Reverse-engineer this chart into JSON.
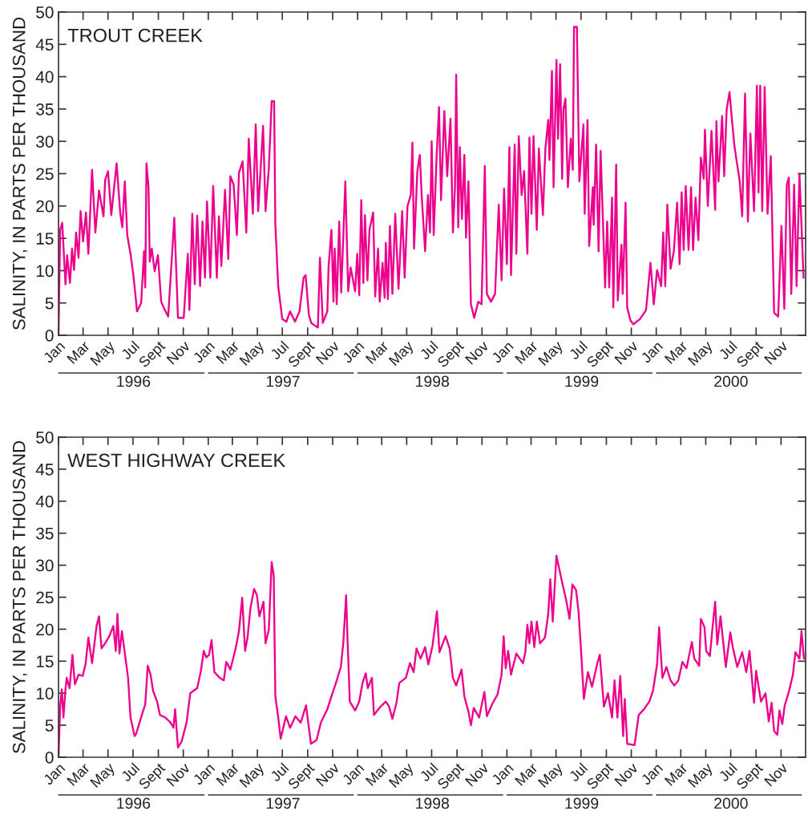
{
  "chart_data": [
    {
      "type": "line",
      "title": "TROUT CREEK",
      "ylabel": "SALINITY, IN PARTS PER THOUSAND",
      "x": [
        "1996-01-01",
        "1996-01-05",
        "1996-01-10",
        "1996-01-18",
        "1996-01-22",
        "1996-01-29",
        "1996-02-03",
        "1996-02-08",
        "1996-02-13",
        "1996-02-19",
        "1996-02-24",
        "1996-03-01",
        "1996-03-08",
        "1996-03-14",
        "1996-03-23",
        "1996-03-31",
        "1996-04-09",
        "1996-04-20",
        "1996-04-24",
        "1996-05-01",
        "1996-05-09",
        "1996-05-22",
        "1996-05-31",
        "1996-06-05",
        "1996-06-11",
        "1996-06-17",
        "1996-06-25",
        "1996-07-02",
        "1996-07-11",
        "1996-07-21",
        "1996-07-28",
        "1996-07-31",
        "1996-08-03",
        "1996-08-08",
        "1996-08-11",
        "1996-08-16",
        "1996-08-23",
        "1996-08-31",
        "1996-09-08",
        "1996-09-14",
        "1996-09-25",
        "1996-10-01",
        "1996-10-10",
        "1996-10-19",
        "1996-11-02",
        "1996-11-12",
        "1996-11-16",
        "1996-11-23",
        "1996-11-29",
        "1996-12-05",
        "1996-12-12",
        "1996-12-18",
        "1996-12-24",
        "1996-12-29",
        "1997-01-06",
        "1997-01-13",
        "1997-01-22",
        "1997-01-27",
        "1997-02-02",
        "1997-02-11",
        "1997-02-19",
        "1997-02-24",
        "1997-03-04",
        "1997-03-12",
        "1997-03-17",
        "1997-03-26",
        "1997-04-04",
        "1997-04-10",
        "1997-04-20",
        "1997-04-27",
        "1997-05-03",
        "1997-05-15",
        "1997-05-21",
        "1997-05-29",
        "1997-06-05",
        "1997-06-11",
        "1997-06-14",
        "1997-06-21",
        "1997-07-01",
        "1997-07-11",
        "1997-07-20",
        "1997-08-01",
        "1997-08-12",
        "1997-08-22",
        "1997-08-27",
        "1997-09-04",
        "1997-09-10",
        "1997-09-26",
        "1997-10-01",
        "1997-10-08",
        "1997-10-19",
        "1997-10-22",
        "1997-10-29",
        "1997-11-03",
        "1997-11-06",
        "1997-11-11",
        "1997-11-17",
        "1997-11-22",
        "1997-12-02",
        "1997-12-09",
        "1997-12-15",
        "1997-12-26",
        "1997-12-31",
        "1998-01-05",
        "1998-01-10",
        "1998-01-15",
        "1998-01-19",
        "1998-01-25",
        "1998-01-30",
        "1998-02-08",
        "1998-02-13",
        "1998-02-20",
        "1998-02-24",
        "1998-03-03",
        "1998-03-08",
        "1998-03-11",
        "1998-03-16",
        "1998-03-21",
        "1998-03-27",
        "1998-04-03",
        "1998-04-11",
        "1998-04-20",
        "1998-04-26",
        "1998-05-03",
        "1998-05-11",
        "1998-05-15",
        "1998-05-19",
        "1998-05-27",
        "1998-06-02",
        "1998-06-07",
        "1998-06-15",
        "1998-06-22",
        "1998-06-27",
        "1998-07-01",
        "1998-07-06",
        "1998-07-13",
        "1998-07-19",
        "1998-07-24",
        "1998-08-01",
        "1998-08-08",
        "1998-08-16",
        "1998-08-22",
        "1998-08-27",
        "1998-08-30",
        "1998-09-04",
        "1998-09-08",
        "1998-09-13",
        "1998-09-19",
        "1998-09-23",
        "1998-09-29",
        "1998-10-05",
        "1998-10-13",
        "1998-10-23",
        "1998-10-31",
        "1998-11-08",
        "1998-11-13",
        "1998-11-23",
        "1998-12-03",
        "1998-12-12",
        "1998-12-19",
        "1998-12-25",
        "1999-01-01",
        "1999-01-07",
        "1999-01-11",
        "1999-01-20",
        "1999-01-24",
        "1999-01-30",
        "1999-02-06",
        "1999-02-12",
        "1999-02-20",
        "1999-02-25",
        "1999-03-02",
        "1999-03-07",
        "1999-03-15",
        "1999-03-20",
        "1999-03-30",
        "1999-04-05",
        "1999-04-12",
        "1999-04-15",
        "1999-04-21",
        "1999-04-25",
        "1999-05-02",
        "1999-05-06",
        "1999-05-11",
        "1999-05-16",
        "1999-05-19",
        "1999-05-24",
        "1999-05-30",
        "1999-06-06",
        "1999-06-11",
        "1999-06-14",
        "1999-06-21",
        "1999-06-24",
        "1999-06-27",
        "1999-07-07",
        "1999-07-10",
        "1999-07-17",
        "1999-07-21",
        "1999-07-30",
        "1999-08-01",
        "1999-08-07",
        "1999-08-13",
        "1999-08-18",
        "1999-08-29",
        "1999-09-03",
        "1999-09-08",
        "1999-09-15",
        "1999-09-18",
        "1999-09-25",
        "1999-09-29",
        "1999-10-08",
        "1999-10-11",
        "1999-10-18",
        "1999-10-22",
        "1999-10-30",
        "1999-11-06",
        "1999-11-22",
        "1999-12-07",
        "1999-12-18",
        "1999-12-26",
        "2000-01-03",
        "2000-01-13",
        "2000-01-18",
        "2000-01-23",
        "2000-01-28",
        "2000-02-05",
        "2000-02-13",
        "2000-02-21",
        "2000-02-27",
        "2000-03-03",
        "2000-03-08",
        "2000-03-13",
        "2000-03-20",
        "2000-03-26",
        "2000-03-31",
        "2000-04-06",
        "2000-04-13",
        "2000-04-19",
        "2000-04-26",
        "2000-04-29",
        "2000-05-06",
        "2000-05-15",
        "2000-05-24",
        "2000-05-27",
        "2000-06-01",
        "2000-06-10",
        "2000-06-15",
        "2000-06-21",
        "2000-06-28",
        "2000-07-04",
        "2000-07-10",
        "2000-07-23",
        "2000-07-29",
        "2000-08-05",
        "2000-08-12",
        "2000-08-18",
        "2000-08-27",
        "2000-09-03",
        "2000-09-07",
        "2000-09-11",
        "2000-09-16",
        "2000-09-22",
        "2000-09-29",
        "2000-10-07",
        "2000-10-15",
        "2000-10-25",
        "2000-11-02",
        "2000-11-09",
        "2000-11-15",
        "2000-11-20",
        "2000-11-26",
        "2000-12-03",
        "2000-12-09",
        "2000-12-16",
        "2000-12-26"
      ],
      "series": [
        {
          "color": "#ec008c",
          "values": [
            0,
            16.3,
            17.4,
            7.9,
            12.4,
            8.1,
            13.4,
            10.1,
            15.9,
            12.0,
            19.2,
            14.5,
            19.0,
            12.6,
            25.6,
            15.9,
            22.4,
            18.4,
            24.0,
            25.4,
            18.6,
            26.6,
            18.8,
            16.7,
            23.8,
            15.5,
            12.6,
            9.3,
            3.7,
            5.0,
            13.0,
            7.4,
            26.6,
            22.9,
            11.4,
            13.4,
            9.9,
            12.4,
            5.2,
            4.3,
            2.9,
            8.9,
            18.2,
            2.7,
            2.7,
            12.6,
            3.9,
            18.8,
            7.9,
            18.5,
            7.6,
            17.6,
            8.9,
            20.7,
            8.9,
            23.1,
            8.9,
            18.4,
            10.7,
            22.5,
            11.8,
            24.6,
            23.3,
            15.5,
            25.1,
            26.9,
            15.9,
            30.4,
            18.8,
            32.6,
            19.2,
            32.4,
            19.2,
            25.8,
            36.2,
            36.2,
            17.1,
            7.6,
            2.5,
            2.1,
            3.7,
            2.1,
            3.7,
            8.9,
            9.3,
            3.1,
            1.9,
            1.2,
            12.0,
            1.9,
            3.7,
            10.5,
            16.3,
            5.2,
            13.4,
            4.8,
            17.6,
            6.6,
            23.8,
            6.8,
            10.5,
            6.8,
            12.6,
            6.2,
            20.9,
            8.1,
            18.6,
            8.5,
            16.3,
            19.0,
            6.0,
            13.4,
            5.2,
            11.2,
            5.8,
            14.3,
            5.6,
            16.9,
            6.4,
            18.8,
            7.2,
            19.2,
            8.9,
            20.0,
            21.7,
            29.8,
            13.4,
            25.4,
            27.9,
            21.3,
            13.0,
            21.7,
            15.9,
            30.0,
            15.5,
            27.5,
            35.3,
            20.9,
            34.7,
            24.6,
            33.5,
            15.9,
            22.9,
            40.3,
            16.7,
            29.1,
            18.0,
            27.9,
            15.1,
            23.8,
            4.8,
            2.7,
            5.2,
            4.8,
            26.2,
            6.4,
            5.2,
            6.4,
            20.2,
            8.5,
            22.7,
            11.0,
            29.1,
            9.3,
            29.5,
            12.6,
            30.8,
            21.7,
            25.4,
            12.6,
            30.6,
            18.8,
            30.8,
            16.3,
            28.9,
            18.6,
            28.9,
            33.3,
            27.1,
            40.9,
            22.9,
            42.6,
            30.4,
            41.9,
            24.2,
            34.9,
            36.6,
            22.9,
            30.4,
            25.6,
            47.7,
            47.7,
            35.7,
            23.8,
            32.6,
            18.8,
            33.3,
            13.8,
            22.9,
            17.1,
            29.5,
            13.0,
            28.5,
            7.4,
            17.6,
            7.4,
            21.3,
            4.3,
            26.4,
            5.4,
            14.0,
            6.4,
            20.5,
            4.3,
            2.3,
            1.7,
            2.5,
            3.9,
            11.2,
            4.8,
            10.1,
            7.6,
            15.9,
            7.6,
            20.2,
            10.3,
            13.0,
            20.5,
            11.0,
            22.1,
            13.2,
            23.1,
            13.2,
            22.9,
            13.2,
            21.3,
            14.7,
            27.5,
            24.2,
            31.8,
            20.0,
            31.6,
            19.4,
            33.1,
            23.8,
            33.9,
            24.6,
            34.9,
            37.6,
            33.3,
            29.3,
            23.8,
            18.4,
            37.4,
            17.6,
            31.2,
            19.2,
            38.6,
            22.1,
            38.6,
            19.2,
            38.4,
            18.8,
            27.7,
            3.5,
            2.9,
            16.9,
            4.1,
            23.3,
            24.4,
            6.4,
            23.3,
            7.6,
            25.0,
            8.9
          ]
        }
      ],
      "xlim": [
        "1996-01-01",
        "2000-12-31"
      ],
      "ylim": [
        0,
        50
      ],
      "yticks": [
        0,
        5,
        10,
        15,
        20,
        25,
        30,
        35,
        40,
        45,
        50
      ],
      "xticks": [
        {
          "value": "1996-01-01",
          "label": "Jan"
        },
        {
          "value": "1996-03-01",
          "label": "Mar"
        },
        {
          "value": "1996-05-01",
          "label": "May"
        },
        {
          "value": "1996-07-01",
          "label": "Jul"
        },
        {
          "value": "1996-09-01",
          "label": "Sept"
        },
        {
          "value": "1996-11-01",
          "label": "Nov"
        },
        {
          "value": "1997-01-01",
          "label": "Jan"
        },
        {
          "value": "1997-03-01",
          "label": "Mar"
        },
        {
          "value": "1997-05-01",
          "label": "May"
        },
        {
          "value": "1997-07-01",
          "label": "Jul"
        },
        {
          "value": "1997-09-01",
          "label": "Sept"
        },
        {
          "value": "1997-11-01",
          "label": "Nov"
        },
        {
          "value": "1998-01-01",
          "label": "Jan"
        },
        {
          "value": "1998-03-01",
          "label": "Mar"
        },
        {
          "value": "1998-05-01",
          "label": "May"
        },
        {
          "value": "1998-07-01",
          "label": "Jul"
        },
        {
          "value": "1998-09-01",
          "label": "Sept"
        },
        {
          "value": "1998-11-01",
          "label": "Nov"
        },
        {
          "value": "1999-01-01",
          "label": "Jan"
        },
        {
          "value": "1999-03-01",
          "label": "Mar"
        },
        {
          "value": "1999-05-01",
          "label": "May"
        },
        {
          "value": "1999-07-01",
          "label": "Jul"
        },
        {
          "value": "1999-09-01",
          "label": "Sept"
        },
        {
          "value": "1999-11-01",
          "label": "Nov"
        },
        {
          "value": "2000-01-01",
          "label": "Jan"
        },
        {
          "value": "2000-03-01",
          "label": "Mar"
        },
        {
          "value": "2000-05-01",
          "label": "May"
        },
        {
          "value": "2000-07-01",
          "label": "Jul"
        },
        {
          "value": "2000-09-01",
          "label": "Sept"
        },
        {
          "value": "2000-11-01",
          "label": "Nov"
        }
      ],
      "annotations": [
        "1996",
        "1997",
        "1998",
        "1999",
        "2000"
      ]
    },
    {
      "type": "line",
      "title": "WEST HIGHWAY CREEK",
      "ylabel": "SALINITY, IN PARTS PER THOUSAND",
      "x": [
        "1996-01-01",
        "1996-01-05",
        "1996-01-09",
        "1996-01-13",
        "1996-01-18",
        "1996-01-21",
        "1996-01-28",
        "1996-02-04",
        "1996-02-10",
        "1996-02-19",
        "1996-02-29",
        "1996-03-07",
        "1996-03-14",
        "1996-03-23",
        "1996-04-03",
        "1996-04-09",
        "1996-04-15",
        "1996-04-24",
        "1996-05-04",
        "1996-05-14",
        "1996-05-20",
        "1996-05-24",
        "1996-05-29",
        "1996-06-04",
        "1996-06-12",
        "1996-06-19",
        "1996-06-25",
        "1996-07-05",
        "1996-07-09",
        "1996-07-15",
        "1996-07-31",
        "1996-08-06",
        "1996-08-13",
        "1996-08-19",
        "1996-08-29",
        "1996-09-05",
        "1996-09-18",
        "1996-10-01",
        "1996-10-08",
        "1996-10-12",
        "1996-10-19",
        "1996-10-28",
        "1996-11-09",
        "1996-11-18",
        "1996-12-05",
        "1996-12-14",
        "1996-12-21",
        "1996-12-27",
        "1997-01-03",
        "1997-01-09",
        "1997-01-16",
        "1997-01-29",
        "1997-02-08",
        "1997-02-14",
        "1997-02-24",
        "1997-03-09",
        "1997-03-17",
        "1997-03-25",
        "1997-04-01",
        "1997-04-07",
        "1997-04-14",
        "1997-04-23",
        "1997-04-30",
        "1997-05-06",
        "1997-05-16",
        "1997-05-21",
        "1997-05-29",
        "1997-06-05",
        "1997-06-10",
        "1997-06-14",
        "1997-06-21",
        "1997-06-27",
        "1997-07-10",
        "1997-07-20",
        "1997-08-02",
        "1997-08-15",
        "1997-08-28",
        "1997-09-04",
        "1997-09-09",
        "1997-09-23",
        "1997-10-03",
        "1997-10-19",
        "1997-10-29",
        "1997-11-08",
        "1997-11-21",
        "1997-11-27",
        "1997-12-04",
        "1997-12-07",
        "1997-12-13",
        "1997-12-26",
        "1998-01-05",
        "1998-01-13",
        "1998-01-21",
        "1998-01-26",
        "1998-02-05",
        "1998-02-10",
        "1998-02-26",
        "1998-03-11",
        "1998-03-19",
        "1998-03-27",
        "1998-04-06",
        "1998-04-13",
        "1998-04-29",
        "1998-05-09",
        "1998-05-18",
        "1998-05-25",
        "1998-06-04",
        "1998-06-15",
        "1998-06-23",
        "1998-07-03",
        "1998-07-14",
        "1998-07-20",
        "1998-08-04",
        "1998-08-14",
        "1998-08-22",
        "1998-08-30",
        "1998-09-12",
        "1998-09-19",
        "1998-09-29",
        "1998-10-05",
        "1998-10-12",
        "1998-10-25",
        "1998-11-07",
        "1998-11-13",
        "1998-11-26",
        "1998-12-09",
        "1998-12-19",
        "1998-12-24",
        "1998-12-29",
        "1999-01-04",
        "1999-01-11",
        "1999-01-24",
        "1999-02-09",
        "1999-02-15",
        "1999-02-20",
        "1999-02-25",
        "1999-03-02",
        "1999-03-09",
        "1999-03-15",
        "1999-03-23",
        "1999-04-04",
        "1999-04-12",
        "1999-04-17",
        "1999-04-23",
        "1999-05-02",
        "1999-05-17",
        "1999-05-26",
        "1999-06-03",
        "1999-06-10",
        "1999-06-19",
        "1999-06-25",
        "1999-07-02",
        "1999-07-08",
        "1999-07-18",
        "1999-07-28",
        "1999-08-10",
        "1999-08-16",
        "1999-08-26",
        "1999-09-05",
        "1999-09-15",
        "1999-09-21",
        "1999-09-28",
        "1999-10-05",
        "1999-10-12",
        "1999-10-16",
        "1999-10-22",
        "1999-11-09",
        "1999-11-19",
        "1999-12-02",
        "1999-12-15",
        "1999-12-24",
        "2000-01-03",
        "2000-01-08",
        "2000-01-16",
        "2000-01-26",
        "2000-02-05",
        "2000-02-14",
        "2000-02-24",
        "2000-03-05",
        "2000-03-15",
        "2000-03-28",
        "2000-04-03",
        "2000-04-15",
        "2000-04-19",
        "2000-04-28",
        "2000-05-02",
        "2000-05-11",
        "2000-05-17",
        "2000-05-24",
        "2000-05-29",
        "2000-06-06",
        "2000-06-19",
        "2000-06-30",
        "2000-07-06",
        "2000-07-17",
        "2000-07-29",
        "2000-08-08",
        "2000-08-16",
        "2000-08-27",
        "2000-09-01",
        "2000-09-13",
        "2000-09-24",
        "2000-10-02",
        "2000-10-09",
        "2000-10-15",
        "2000-10-23",
        "2000-10-28",
        "2000-11-04",
        "2000-11-10",
        "2000-11-20",
        "2000-11-30",
        "2000-12-06",
        "2000-12-16",
        "2000-12-21",
        "2000-12-27"
      ],
      "series": [
        {
          "color": "#ec008c",
          "values": [
            0,
            7.9,
            10.6,
            6.2,
            10.6,
            12.4,
            10.8,
            16.0,
            11.4,
            12.9,
            12.7,
            14.5,
            18.7,
            14.7,
            20.5,
            22.0,
            17.0,
            17.8,
            18.9,
            20.5,
            16.6,
            22.4,
            16.2,
            19.7,
            15.8,
            12.4,
            6.2,
            3.3,
            3.7,
            5.0,
            8.3,
            14.3,
            12.9,
            10.4,
            8.7,
            6.6,
            6.2,
            5.4,
            4.6,
            7.5,
            1.5,
            2.5,
            5.4,
            10.0,
            10.8,
            13.5,
            16.6,
            15.6,
            16.0,
            18.3,
            13.3,
            12.4,
            12.0,
            14.9,
            13.7,
            17.0,
            19.7,
            24.9,
            16.6,
            18.7,
            23.2,
            26.3,
            25.3,
            22.0,
            24.3,
            17.8,
            19.9,
            30.5,
            28.4,
            9.5,
            6.2,
            2.9,
            6.4,
            4.6,
            6.4,
            5.4,
            8.1,
            4.6,
            2.1,
            2.7,
            5.4,
            7.5,
            9.5,
            11.4,
            14.1,
            17.8,
            25.3,
            19.1,
            8.7,
            7.3,
            8.7,
            11.6,
            13.1,
            10.8,
            12.4,
            6.6,
            7.9,
            8.7,
            7.9,
            6.0,
            8.5,
            11.6,
            12.4,
            14.7,
            13.3,
            17.0,
            15.4,
            17.2,
            14.5,
            17.4,
            22.8,
            16.4,
            18.9,
            17.0,
            12.4,
            11.2,
            13.7,
            9.5,
            7.1,
            5.0,
            7.7,
            6.2,
            10.2,
            6.4,
            8.3,
            9.8,
            12.9,
            18.9,
            13.9,
            16.6,
            12.9,
            16.2,
            14.7,
            16.4,
            20.7,
            17.8,
            21.2,
            17.2,
            21.2,
            17.8,
            18.7,
            22.4,
            27.8,
            21.2,
            31.5,
            27.0,
            24.5,
            21.6,
            27.0,
            26.1,
            22.8,
            15.8,
            9.1,
            13.3,
            11.0,
            14.7,
            16.0,
            7.9,
            10.0,
            6.2,
            12.0,
            6.2,
            12.7,
            3.3,
            9.1,
            2.1,
            1.9,
            6.6,
            7.5,
            8.7,
            10.4,
            14.5,
            20.3,
            12.4,
            14.1,
            12.0,
            11.2,
            12.0,
            14.9,
            13.9,
            18.0,
            15.4,
            14.3,
            21.6,
            20.3,
            16.6,
            15.8,
            19.9,
            24.3,
            17.6,
            22.0,
            14.1,
            19.5,
            17.2,
            14.1,
            16.4,
            13.3,
            16.6,
            8.5,
            13.5,
            8.7,
            10.0,
            5.6,
            8.5,
            4.1,
            3.5,
            7.3,
            5.2,
            8.1,
            10.2,
            12.9,
            16.4,
            15.4,
            19.7,
            15.4
          ]
        }
      ],
      "xlim": [
        "1996-01-01",
        "2000-12-31"
      ],
      "ylim": [
        0,
        50
      ],
      "yticks": [
        0,
        5,
        10,
        15,
        20,
        25,
        30,
        35,
        40,
        45,
        50
      ],
      "xticks": [
        {
          "value": "1996-01-01",
          "label": "Jan"
        },
        {
          "value": "1996-03-01",
          "label": "Mar"
        },
        {
          "value": "1996-05-01",
          "label": "May"
        },
        {
          "value": "1996-07-01",
          "label": "Jul"
        },
        {
          "value": "1996-09-01",
          "label": "Sept"
        },
        {
          "value": "1996-11-01",
          "label": "Nov"
        },
        {
          "value": "1997-01-01",
          "label": "Jan"
        },
        {
          "value": "1997-03-01",
          "label": "Mar"
        },
        {
          "value": "1997-05-01",
          "label": "May"
        },
        {
          "value": "1997-07-01",
          "label": "Jul"
        },
        {
          "value": "1997-09-01",
          "label": "Sept"
        },
        {
          "value": "1997-11-01",
          "label": "Nov"
        },
        {
          "value": "1998-01-01",
          "label": "Jan"
        },
        {
          "value": "1998-03-01",
          "label": "Mar"
        },
        {
          "value": "1998-05-01",
          "label": "May"
        },
        {
          "value": "1998-07-01",
          "label": "Jul"
        },
        {
          "value": "1998-09-01",
          "label": "Sept"
        },
        {
          "value": "1998-11-01",
          "label": "Nov"
        },
        {
          "value": "1999-01-01",
          "label": "Jan"
        },
        {
          "value": "1999-03-01",
          "label": "Mar"
        },
        {
          "value": "1999-05-01",
          "label": "May"
        },
        {
          "value": "1999-07-01",
          "label": "Jul"
        },
        {
          "value": "1999-09-01",
          "label": "Sept"
        },
        {
          "value": "1999-11-01",
          "label": "Nov"
        },
        {
          "value": "2000-01-01",
          "label": "Jan"
        },
        {
          "value": "2000-03-01",
          "label": "Mar"
        },
        {
          "value": "2000-05-01",
          "label": "May"
        },
        {
          "value": "2000-07-01",
          "label": "Jul"
        },
        {
          "value": "2000-09-01",
          "label": "Sept"
        },
        {
          "value": "2000-11-01",
          "label": "Nov"
        }
      ],
      "annotations": [
        "1996",
        "1997",
        "1998",
        "1999",
        "2000"
      ]
    }
  ]
}
